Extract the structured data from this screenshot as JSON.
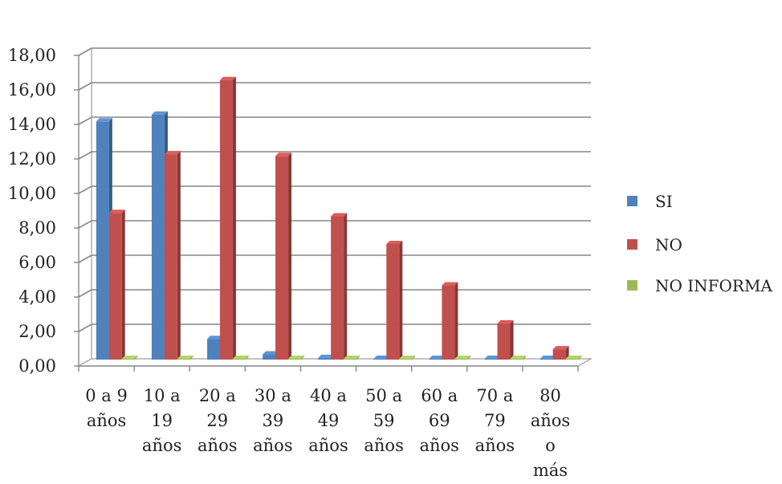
{
  "chart_data": {
    "type": "bar",
    "title": "",
    "xlabel": "",
    "ylabel": "",
    "ylim": [
      0,
      18
    ],
    "y_ticks": [
      "0,00",
      "2,00",
      "4,00",
      "6,00",
      "8,00",
      "10,00",
      "12,00",
      "14,00",
      "16,00",
      "18,00"
    ],
    "grid": true,
    "legend_position": "right",
    "categories": [
      [
        "0 a 9",
        "años"
      ],
      [
        "10 a",
        "19",
        "años"
      ],
      [
        "20 a",
        "29",
        "años"
      ],
      [
        "30 a",
        "39",
        "años"
      ],
      [
        "40 a",
        "49",
        "años"
      ],
      [
        "50 a",
        "59",
        "años"
      ],
      [
        "60 a",
        "69",
        "años"
      ],
      [
        "70 a",
        "79",
        "años"
      ],
      [
        "80",
        "años",
        "o",
        "más"
      ]
    ],
    "series": [
      {
        "name": "SI",
        "color": "#4F81BD",
        "values": [
          13.8,
          14.2,
          1.2,
          0.3,
          0.1,
          0.0,
          0.0,
          0.0,
          0.0
        ]
      },
      {
        "name": "NO",
        "color": "#C0504D",
        "values": [
          8.5,
          11.9,
          16.2,
          11.8,
          8.3,
          6.7,
          4.3,
          2.1,
          0.6
        ]
      },
      {
        "name": "NO INFORMA",
        "color": "#9BBB59",
        "values": [
          0.0,
          0.0,
          0.0,
          0.0,
          0.0,
          0.0,
          0.0,
          0.0,
          0.0
        ]
      }
    ]
  }
}
